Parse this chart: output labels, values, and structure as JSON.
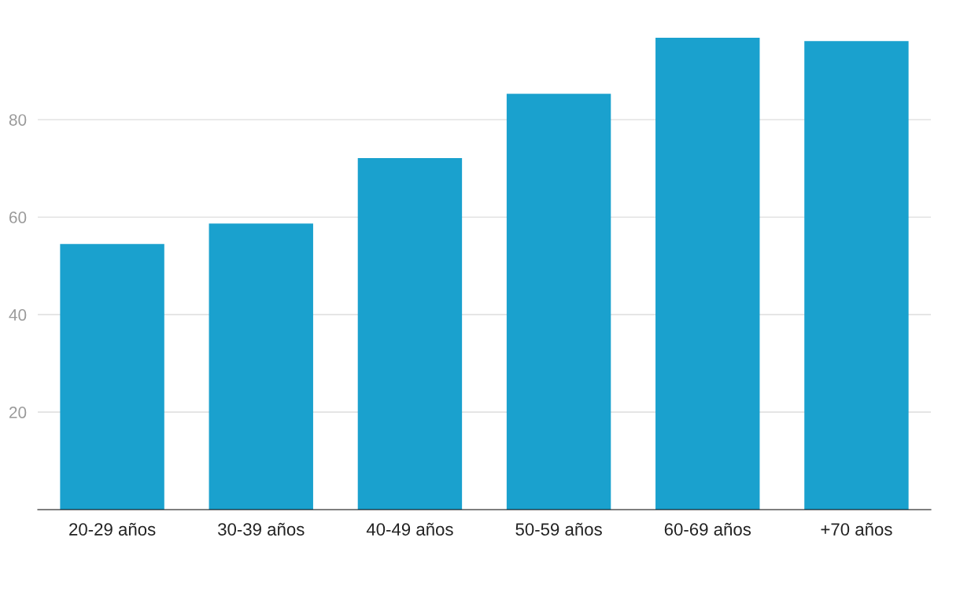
{
  "chart_data": {
    "type": "bar",
    "categories": [
      "20-29 años",
      "30-39 años",
      "40-49 años",
      "50-59 años",
      "60-69 años",
      "+70 años"
    ],
    "values": [
      54.5,
      58.7,
      72.1,
      85.3,
      96.8,
      96.1
    ],
    "color": "#1aa1ce",
    "ylim": [
      0,
      96.8
    ],
    "yticks": [
      20,
      40,
      60,
      80
    ],
    "grid": "y"
  }
}
